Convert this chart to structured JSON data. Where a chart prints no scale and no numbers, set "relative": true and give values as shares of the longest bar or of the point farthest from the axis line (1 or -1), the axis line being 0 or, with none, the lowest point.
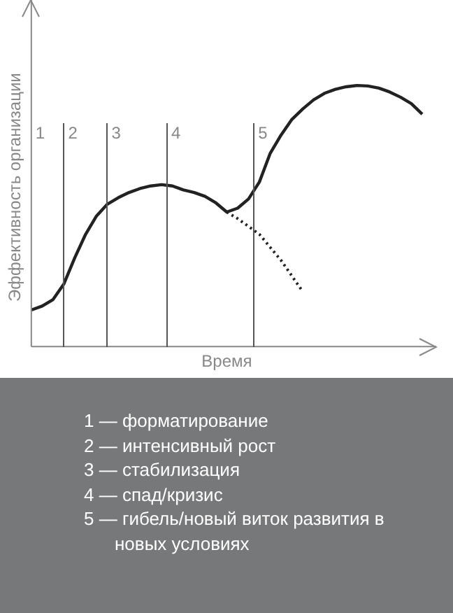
{
  "chart_data": {
    "type": "line",
    "relative": true,
    "xlabel": "Время",
    "ylabel": "Эффективность организации",
    "categories": [
      null,
      null,
      null,
      null,
      null,
      null,
      null,
      null,
      null,
      null,
      null,
      null,
      null,
      null,
      null,
      null,
      null,
      null,
      null,
      null,
      null,
      null,
      null,
      null,
      null,
      null,
      null,
      null,
      null,
      null,
      null,
      null,
      null,
      null,
      null,
      null,
      null
    ],
    "series": [
      {
        "color": "#222222",
        "line_style": "solid",
        "values": [
          0.14,
          0.155,
          0.18,
          0.24,
          0.34,
          0.43,
          0.5,
          0.545,
          0.57,
          0.59,
          0.605,
          0.615,
          0.62,
          0.615,
          0.6,
          0.59,
          0.575,
          0.55,
          0.515,
          0.53,
          0.565,
          0.63,
          0.74,
          0.81,
          0.87,
          0.91,
          0.945,
          0.97,
          0.985,
          0.995,
          1,
          0.998,
          0.99,
          0.975,
          0.955,
          0.93,
          0.89
        ]
      },
      {
        "color": "#222222",
        "line_style": "dotted",
        "values": [
          null,
          null,
          null,
          null,
          null,
          null,
          null,
          null,
          null,
          null,
          null,
          null,
          null,
          null,
          null,
          null,
          null,
          null,
          0.515,
          0.49,
          0.46,
          0.43,
          0.38,
          0.33,
          0.27,
          0.21,
          null,
          null,
          null,
          null,
          null,
          null,
          null,
          null,
          null,
          null,
          null
        ]
      }
    ],
    "marker": "none",
    "annotations": [
      "1",
      "2",
      "3",
      "4",
      "5",
      "1 — форматирование",
      "2 — интенсивный рост",
      "3 — стабилизация",
      "4 — спад/кризис",
      "5 — гибель/новый виток развития в новых условиях"
    ]
  }
}
